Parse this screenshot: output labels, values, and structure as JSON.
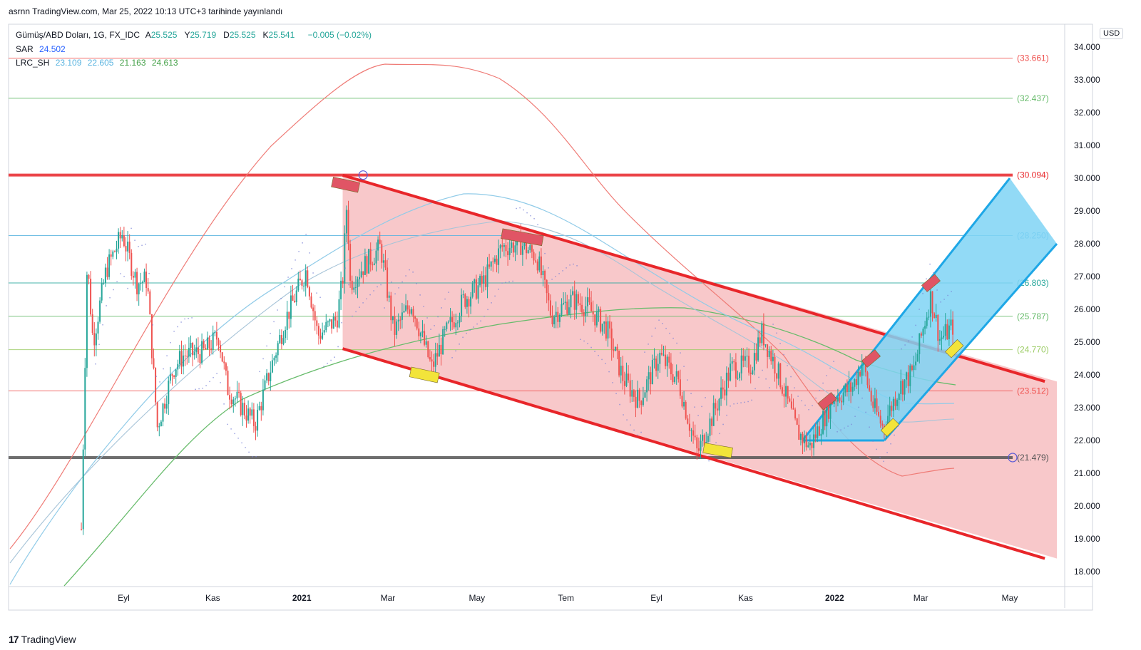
{
  "header": {
    "published": "asrnn TradingView.com, Mar 25, 2022 10:13 UTC+3 tarihinde yayınlandı"
  },
  "legend": {
    "symbol": "Gümüş/ABD Doları, 1G, FX_IDC",
    "ohlc": [
      {
        "label": "A",
        "value": "25.525"
      },
      {
        "label": "Y",
        "value": "25.719"
      },
      {
        "label": "D",
        "value": "25.525"
      },
      {
        "label": "K",
        "value": "25.541"
      }
    ],
    "change": "−0.005 (−0.02%)",
    "sar_label": "SAR",
    "sar_value": "24.502",
    "lrc_label": "LRC_SH",
    "lrc_values": [
      "23.109",
      "22.605",
      "21.163",
      "24.613"
    ]
  },
  "currency": "USD",
  "footer": {
    "brand": "TradingView",
    "logo_text": "17"
  },
  "colors": {
    "up": "#26a69a",
    "down": "#ef5350",
    "channel_red": "#e8262a",
    "channel_fill": "#f5b5b8",
    "channel_blue": "#1ea7e6",
    "blue_fill": "#7fd3f5",
    "sar": "#7b83d6",
    "lrc_green": "#66bb6a",
    "lrc_lightblue": "#90cbe8"
  },
  "chart_data": {
    "type": "candlestick",
    "ylim": [
      17.8,
      34.5
    ],
    "y_ticks": [
      "34.000",
      "33.000",
      "32.000",
      "31.000",
      "30.000",
      "29.000",
      "28.000",
      "27.000",
      "26.000",
      "25.000",
      "24.000",
      "23.000",
      "22.000",
      "21.000",
      "20.000",
      "19.000",
      "18.000"
    ],
    "x_ticks": [
      "Eyl",
      "Kas",
      "2021",
      "Mar",
      "May",
      "Tem",
      "Eyl",
      "Kas",
      "2022",
      "Mar",
      "May"
    ],
    "horizontal_levels": [
      {
        "value": 33.661,
        "label": "33.661",
        "color": "#ef5350"
      },
      {
        "value": 32.437,
        "label": "32.437",
        "color": "#66bb6a"
      },
      {
        "value": 30.094,
        "label": "30.094",
        "color": "#e8262a"
      },
      {
        "value": 28.25,
        "label": "28.250",
        "color": "#5ab4e0"
      },
      {
        "value": 26.803,
        "label": "26.803",
        "color": "#26a69a"
      },
      {
        "value": 25.787,
        "label": "25.787",
        "color": "#66bb6a"
      },
      {
        "value": 24.77,
        "label": "24.770",
        "color": "#9ccc65"
      },
      {
        "value": 23.512,
        "label": "23.512",
        "color": "#ef5350"
      },
      {
        "value": 21.479,
        "label": "21.479",
        "color": "#555555"
      }
    ],
    "price_path": [
      [
        "2020-08-03",
        19.3
      ],
      [
        "2020-08-07",
        27.5
      ],
      [
        "2020-08-11",
        25.0
      ],
      [
        "2020-08-20",
        27.2
      ],
      [
        "2020-08-31",
        28.3
      ],
      [
        "2020-09-10",
        26.8
      ],
      [
        "2020-09-17",
        26.9
      ],
      [
        "2020-09-24",
        22.4
      ],
      [
        "2020-10-05",
        24.2
      ],
      [
        "2020-10-12",
        24.6
      ],
      [
        "2020-10-26",
        24.7
      ],
      [
        "2020-11-05",
        25.2
      ],
      [
        "2020-11-11",
        23.6
      ],
      [
        "2020-11-30",
        22.5
      ],
      [
        "2020-12-10",
        24.1
      ],
      [
        "2020-12-21",
        25.7
      ],
      [
        "2021-01-04",
        27.2
      ],
      [
        "2021-01-12",
        25.2
      ],
      [
        "2021-01-25",
        25.7
      ],
      [
        "2021-01-29",
        26.9
      ],
      [
        "2021-02-01",
        29.4
      ],
      [
        "2021-02-03",
        26.8
      ],
      [
        "2021-02-12",
        27.3
      ],
      [
        "2021-02-24",
        27.9
      ],
      [
        "2021-03-05",
        25.3
      ],
      [
        "2021-03-17",
        26.2
      ],
      [
        "2021-03-31",
        24.2
      ],
      [
        "2021-04-09",
        25.2
      ],
      [
        "2021-04-22",
        26.3
      ],
      [
        "2021-05-05",
        26.8
      ],
      [
        "2021-05-18",
        27.9
      ],
      [
        "2021-05-31",
        28.0
      ],
      [
        "2021-06-11",
        27.6
      ],
      [
        "2021-06-21",
        25.8
      ],
      [
        "2021-07-05",
        26.3
      ],
      [
        "2021-07-15",
        26.1
      ],
      [
        "2021-07-29",
        25.4
      ],
      [
        "2021-08-09",
        23.9
      ],
      [
        "2021-08-20",
        23.2
      ],
      [
        "2021-09-03",
        24.6
      ],
      [
        "2021-09-16",
        23.8
      ],
      [
        "2021-09-29",
        21.6
      ],
      [
        "2021-10-08",
        22.6
      ],
      [
        "2021-10-22",
        24.2
      ],
      [
        "2021-11-05",
        24.3
      ],
      [
        "2021-11-12",
        25.3
      ],
      [
        "2021-11-23",
        24.1
      ],
      [
        "2021-12-06",
        22.3
      ],
      [
        "2021-12-15",
        21.8
      ],
      [
        "2021-12-31",
        23.3
      ],
      [
        "2022-01-13",
        23.6
      ],
      [
        "2022-01-20",
        24.4
      ],
      [
        "2022-01-27",
        23.1
      ],
      [
        "2022-02-03",
        22.4
      ],
      [
        "2022-02-14",
        23.6
      ],
      [
        "2022-02-24",
        24.1
      ],
      [
        "2022-03-02",
        25.3
      ],
      [
        "2022-03-08",
        26.4
      ],
      [
        "2022-03-14",
        25.1
      ],
      [
        "2022-03-17",
        25.2
      ],
      [
        "2022-03-24",
        25.541
      ]
    ],
    "annotations": {
      "red_channel": {
        "start": [
          "2021-01-29",
          30.09
        ],
        "end": [
          "2022-05-25",
          23.8
        ],
        "lower_start": [
          "2021-01-29",
          24.8
        ],
        "lower_end": [
          "2022-05-25",
          18.4
        ]
      },
      "blue_channel": {
        "start": [
          "2021-12-10",
          22.0
        ],
        "end": [
          "2022-05-01",
          30.0
        ],
        "lower_start": [
          "2022-02-04",
          22.0
        ],
        "lower_end": [
          "2022-05-25",
          28.0
        ]
      }
    }
  }
}
